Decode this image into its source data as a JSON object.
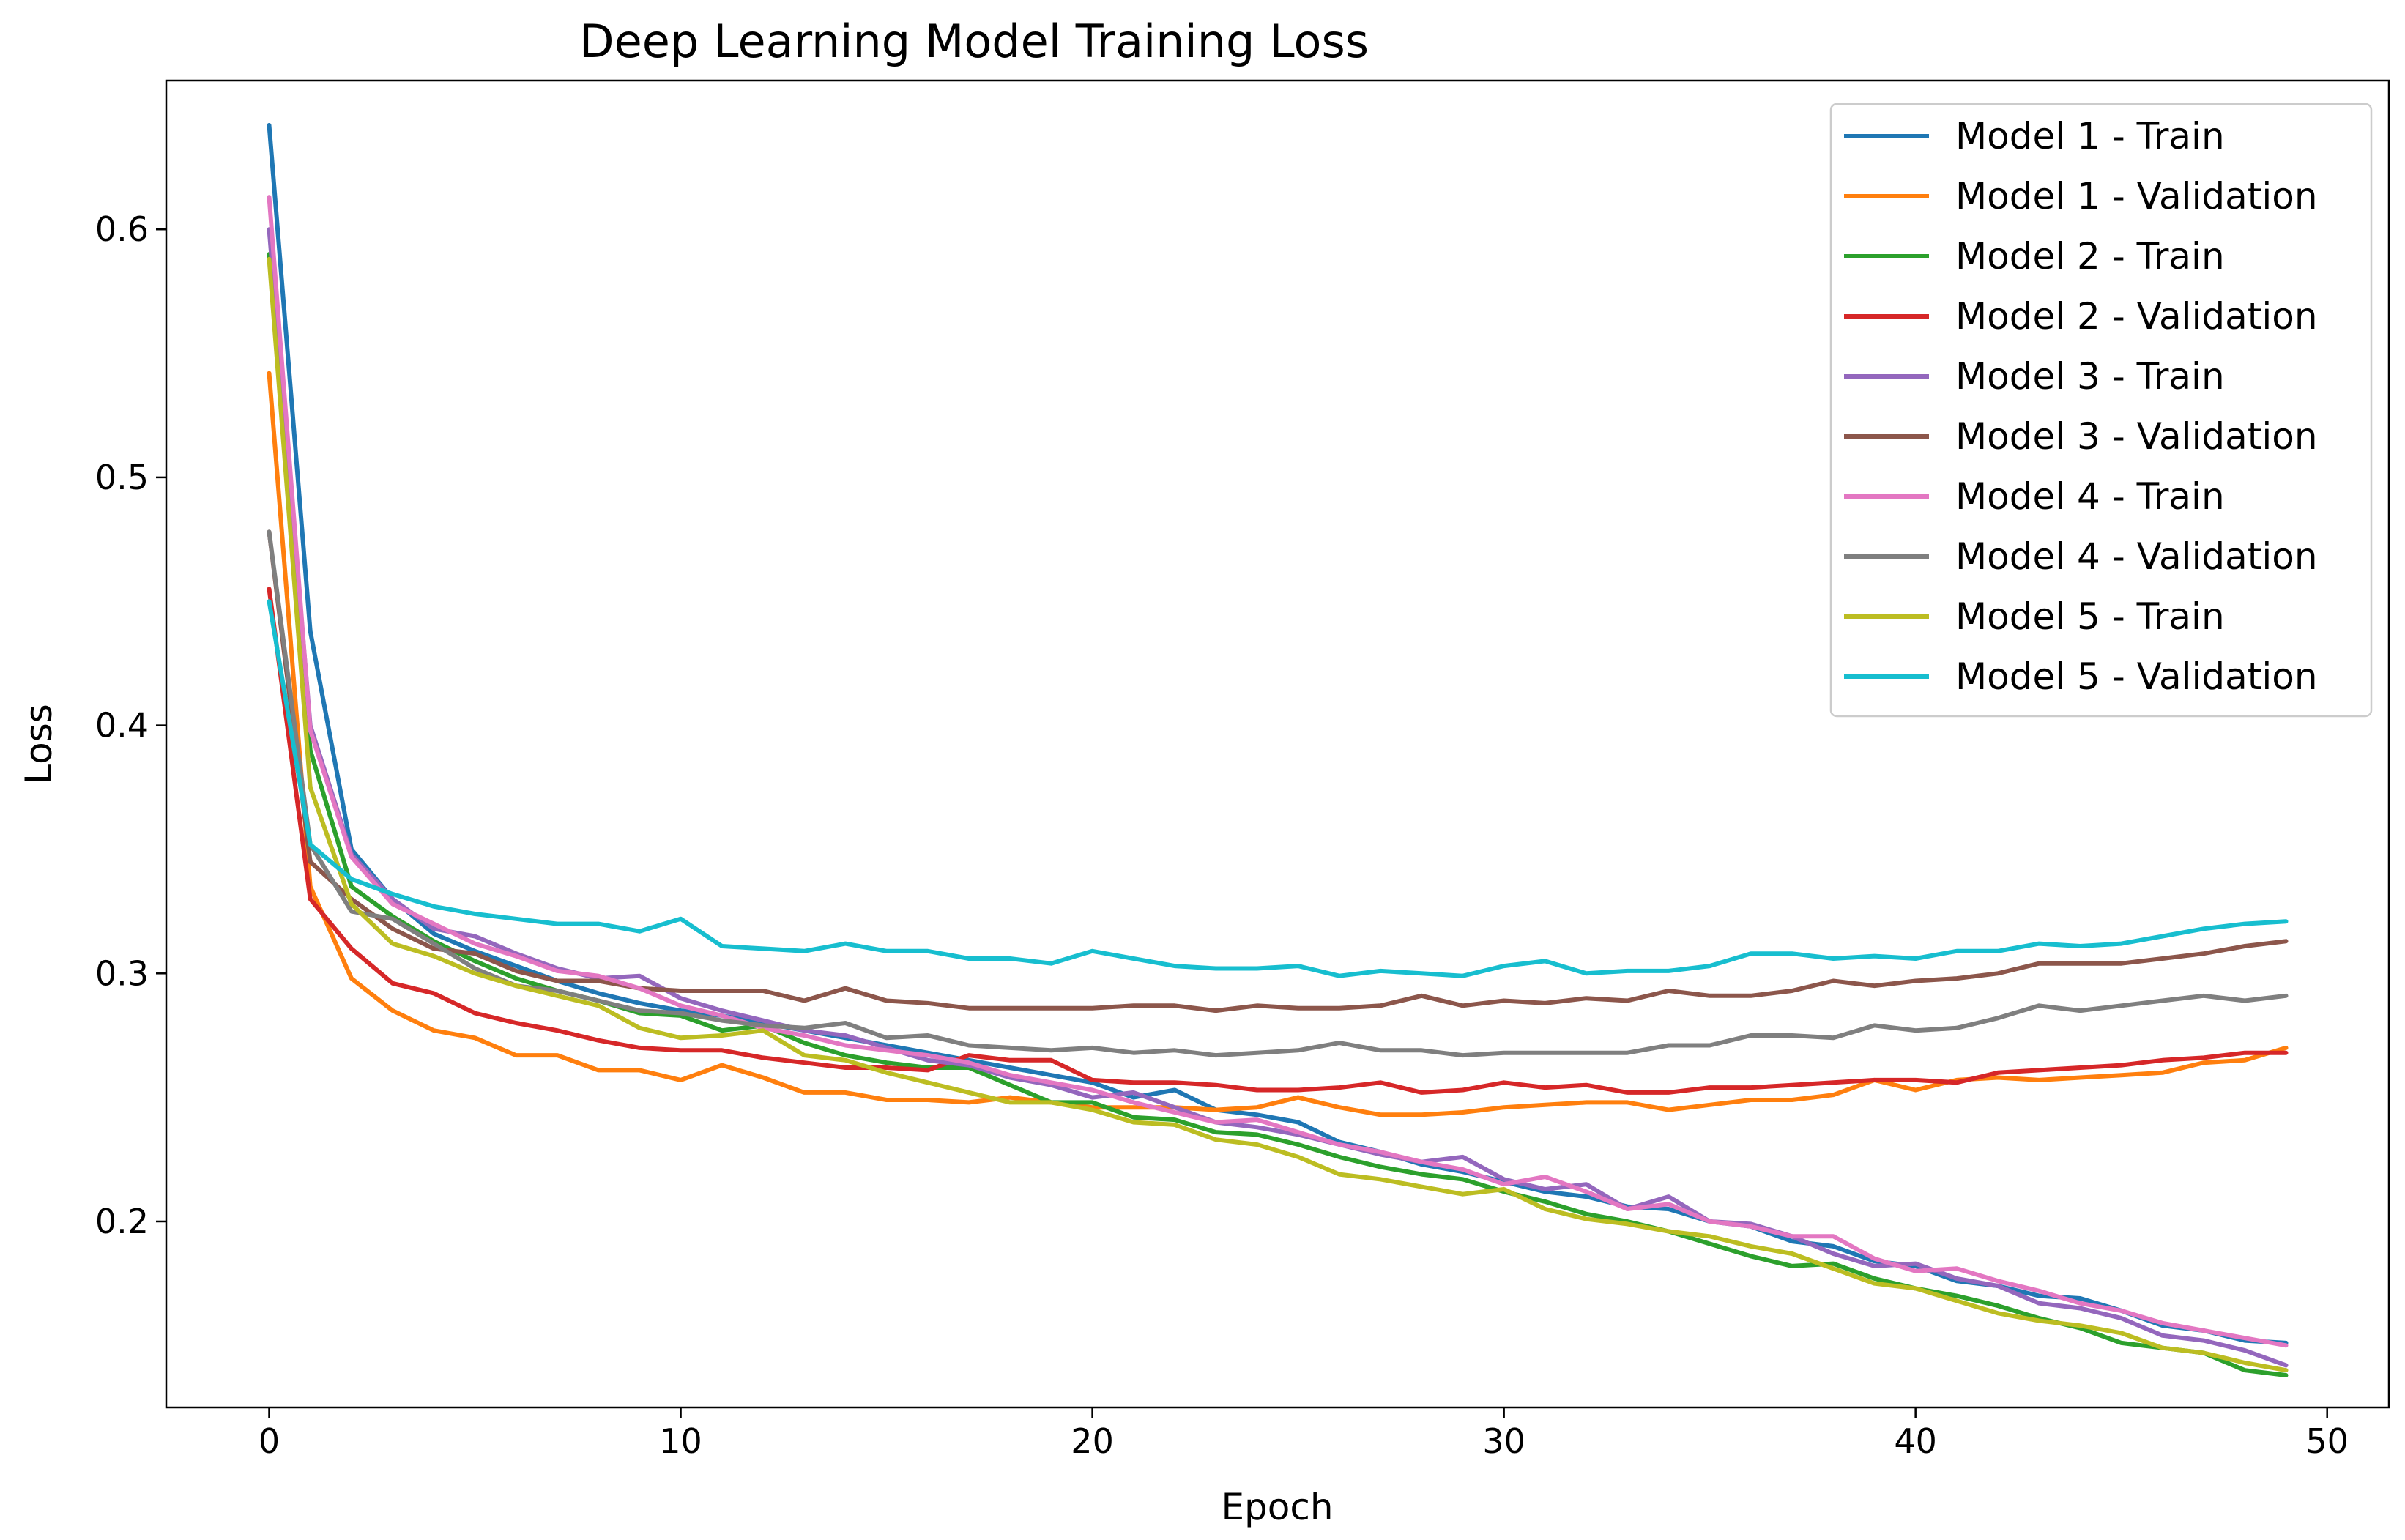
{
  "chart_data": {
    "type": "line",
    "title": "Deep Learning Model Training Loss",
    "xlabel": "Epoch",
    "ylabel": "Loss",
    "xlim": [
      -2.5,
      51.5
    ],
    "ylim": [
      0.125,
      0.66
    ],
    "xticks": [
      0,
      10,
      20,
      30,
      40,
      50
    ],
    "xtick_labels": [
      "0",
      "10",
      "20",
      "30",
      "40",
      "50"
    ],
    "yticks": [
      0.2,
      0.3,
      0.4,
      0.5,
      0.6
    ],
    "ytick_labels": [
      "0.2",
      "0.3",
      "0.4",
      "0.5",
      "0.6"
    ],
    "grid": false,
    "legend_position": "top-right",
    "series": [
      {
        "name": "Model 1 - Train",
        "color": "#1f77b4",
        "values": [
          0.642,
          0.438,
          0.35,
          0.33,
          0.316,
          0.309,
          0.303,
          0.297,
          0.292,
          0.288,
          0.285,
          0.283,
          0.28,
          0.277,
          0.274,
          0.271,
          0.268,
          0.265,
          0.262,
          0.259,
          0.256,
          0.25,
          0.253,
          0.245,
          0.243,
          0.24,
          0.232,
          0.228,
          0.223,
          0.22,
          0.216,
          0.212,
          0.21,
          0.206,
          0.205,
          0.2,
          0.198,
          0.192,
          0.19,
          0.184,
          0.182,
          0.176,
          0.174,
          0.17,
          0.169,
          0.164,
          0.158,
          0.156,
          0.152,
          0.151
        ]
      },
      {
        "name": "Model 1 - Validation",
        "color": "#ff7f0e",
        "values": [
          0.542,
          0.335,
          0.298,
          0.285,
          0.277,
          0.274,
          0.267,
          0.267,
          0.261,
          0.261,
          0.257,
          0.263,
          0.258,
          0.252,
          0.252,
          0.249,
          0.249,
          0.248,
          0.25,
          0.248,
          0.246,
          0.246,
          0.246,
          0.245,
          0.246,
          0.25,
          0.246,
          0.243,
          0.243,
          0.244,
          0.246,
          0.247,
          0.248,
          0.248,
          0.245,
          0.247,
          0.249,
          0.249,
          0.251,
          0.257,
          0.253,
          0.257,
          0.258,
          0.257,
          0.258,
          0.259,
          0.26,
          0.264,
          0.265,
          0.27
        ]
      },
      {
        "name": "Model 2 - Train",
        "color": "#2ca02c",
        "values": [
          0.59,
          0.39,
          0.335,
          0.323,
          0.313,
          0.305,
          0.298,
          0.293,
          0.289,
          0.284,
          0.283,
          0.277,
          0.279,
          0.272,
          0.267,
          0.264,
          0.262,
          0.262,
          0.255,
          0.248,
          0.248,
          0.242,
          0.241,
          0.236,
          0.235,
          0.231,
          0.226,
          0.222,
          0.219,
          0.217,
          0.212,
          0.208,
          0.203,
          0.2,
          0.196,
          0.191,
          0.186,
          0.182,
          0.183,
          0.177,
          0.173,
          0.17,
          0.166,
          0.161,
          0.157,
          0.151,
          0.149,
          0.147,
          0.14,
          0.138
        ]
      },
      {
        "name": "Model 2 - Validation",
        "color": "#d62728",
        "values": [
          0.455,
          0.33,
          0.31,
          0.296,
          0.292,
          0.284,
          0.28,
          0.277,
          0.273,
          0.27,
          0.269,
          0.269,
          0.266,
          0.264,
          0.262,
          0.262,
          0.261,
          0.267,
          0.265,
          0.265,
          0.257,
          0.256,
          0.256,
          0.255,
          0.253,
          0.253,
          0.254,
          0.256,
          0.252,
          0.253,
          0.256,
          0.254,
          0.255,
          0.252,
          0.252,
          0.254,
          0.254,
          0.255,
          0.256,
          0.257,
          0.257,
          0.256,
          0.26,
          0.261,
          0.262,
          0.263,
          0.265,
          0.266,
          0.268,
          0.268
        ]
      },
      {
        "name": "Model 3 - Train",
        "color": "#9467bd",
        "values": [
          0.6,
          0.4,
          0.348,
          0.33,
          0.318,
          0.315,
          0.308,
          0.302,
          0.298,
          0.299,
          0.29,
          0.285,
          0.281,
          0.277,
          0.275,
          0.27,
          0.265,
          0.263,
          0.258,
          0.255,
          0.25,
          0.252,
          0.246,
          0.24,
          0.238,
          0.235,
          0.231,
          0.227,
          0.224,
          0.226,
          0.217,
          0.213,
          0.215,
          0.205,
          0.21,
          0.2,
          0.199,
          0.194,
          0.187,
          0.182,
          0.183,
          0.177,
          0.174,
          0.167,
          0.165,
          0.161,
          0.154,
          0.152,
          0.148,
          0.142
        ]
      },
      {
        "name": "Model 3 - Validation",
        "color": "#8c564b",
        "values": [
          0.478,
          0.345,
          0.33,
          0.318,
          0.31,
          0.308,
          0.301,
          0.297,
          0.297,
          0.294,
          0.293,
          0.293,
          0.293,
          0.289,
          0.294,
          0.289,
          0.288,
          0.286,
          0.286,
          0.286,
          0.286,
          0.287,
          0.287,
          0.285,
          0.287,
          0.286,
          0.286,
          0.287,
          0.291,
          0.287,
          0.289,
          0.288,
          0.29,
          0.289,
          0.293,
          0.291,
          0.291,
          0.293,
          0.297,
          0.295,
          0.297,
          0.298,
          0.3,
          0.304,
          0.304,
          0.304,
          0.306,
          0.308,
          0.311,
          0.313
        ]
      },
      {
        "name": "Model 4 - Train",
        "color": "#e377c2",
        "values": [
          0.613,
          0.398,
          0.347,
          0.328,
          0.32,
          0.312,
          0.307,
          0.301,
          0.299,
          0.294,
          0.287,
          0.283,
          0.278,
          0.275,
          0.271,
          0.269,
          0.267,
          0.264,
          0.259,
          0.256,
          0.253,
          0.248,
          0.244,
          0.24,
          0.241,
          0.236,
          0.231,
          0.228,
          0.224,
          0.221,
          0.215,
          0.218,
          0.212,
          0.205,
          0.207,
          0.2,
          0.198,
          0.194,
          0.194,
          0.185,
          0.18,
          0.181,
          0.176,
          0.172,
          0.167,
          0.164,
          0.159,
          0.156,
          0.153,
          0.15
        ]
      },
      {
        "name": "Model 4 - Validation",
        "color": "#7f7f7f",
        "values": [
          0.478,
          0.352,
          0.325,
          0.322,
          0.312,
          0.302,
          0.295,
          0.293,
          0.289,
          0.285,
          0.284,
          0.281,
          0.279,
          0.278,
          0.28,
          0.274,
          0.275,
          0.271,
          0.27,
          0.269,
          0.27,
          0.268,
          0.269,
          0.267,
          0.268,
          0.269,
          0.272,
          0.269,
          0.269,
          0.267,
          0.268,
          0.268,
          0.268,
          0.268,
          0.271,
          0.271,
          0.275,
          0.275,
          0.274,
          0.279,
          0.277,
          0.278,
          0.282,
          0.287,
          0.285,
          0.287,
          0.289,
          0.291,
          0.289,
          0.291
        ]
      },
      {
        "name": "Model 5 - Train",
        "color": "#bcbd22",
        "values": [
          0.588,
          0.375,
          0.328,
          0.312,
          0.307,
          0.3,
          0.295,
          0.291,
          0.287,
          0.278,
          0.274,
          0.275,
          0.277,
          0.267,
          0.265,
          0.26,
          0.256,
          0.252,
          0.248,
          0.248,
          0.245,
          0.24,
          0.239,
          0.233,
          0.231,
          0.226,
          0.219,
          0.217,
          0.214,
          0.211,
          0.213,
          0.205,
          0.201,
          0.199,
          0.196,
          0.194,
          0.19,
          0.187,
          0.181,
          0.175,
          0.173,
          0.168,
          0.163,
          0.16,
          0.158,
          0.155,
          0.149,
          0.147,
          0.143,
          0.14
        ]
      },
      {
        "name": "Model 5 - Validation",
        "color": "#17becf",
        "values": [
          0.45,
          0.352,
          0.338,
          0.332,
          0.327,
          0.324,
          0.322,
          0.32,
          0.32,
          0.317,
          0.322,
          0.311,
          0.31,
          0.309,
          0.312,
          0.309,
          0.309,
          0.306,
          0.306,
          0.304,
          0.309,
          0.306,
          0.303,
          0.302,
          0.302,
          0.303,
          0.299,
          0.301,
          0.3,
          0.299,
          0.303,
          0.305,
          0.3,
          0.301,
          0.301,
          0.303,
          0.308,
          0.308,
          0.306,
          0.307,
          0.306,
          0.309,
          0.309,
          0.312,
          0.311,
          0.312,
          0.315,
          0.318,
          0.32,
          0.321
        ]
      }
    ]
  }
}
